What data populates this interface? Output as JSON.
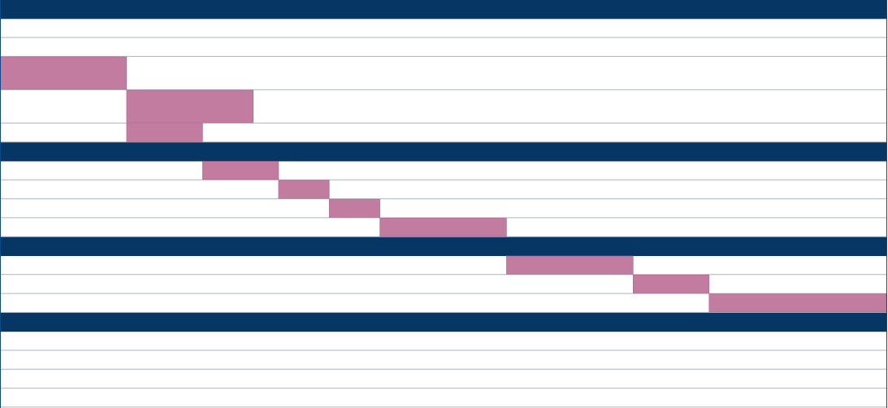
{
  "colors": {
    "header_band": "#063764",
    "task_bar": "#c27ca0",
    "row_line": "#a9b4be",
    "frame": "#0a4a8a",
    "background": "#ffffff"
  },
  "chart_data": {
    "type": "bar",
    "subtype": "gantt",
    "title": "",
    "xlabel": "",
    "ylabel": "",
    "xlim": [
      0,
      35
    ],
    "grid": true,
    "legend": "none",
    "rows": [
      {
        "kind": "header"
      },
      {
        "kind": "empty"
      },
      {
        "kind": "empty"
      },
      {
        "kind": "task",
        "start": 0,
        "end": 5
      },
      {
        "kind": "task",
        "start": 5,
        "end": 10
      },
      {
        "kind": "task",
        "start": 5,
        "end": 8
      },
      {
        "kind": "header"
      },
      {
        "kind": "task",
        "start": 8,
        "end": 11
      },
      {
        "kind": "task",
        "start": 11,
        "end": 13
      },
      {
        "kind": "task",
        "start": 13,
        "end": 15
      },
      {
        "kind": "task",
        "start": 15,
        "end": 20
      },
      {
        "kind": "header"
      },
      {
        "kind": "task",
        "start": 20,
        "end": 25
      },
      {
        "kind": "task",
        "start": 25,
        "end": 28
      },
      {
        "kind": "task",
        "start": 28,
        "end": 35
      },
      {
        "kind": "header"
      },
      {
        "kind": "empty"
      },
      {
        "kind": "empty"
      },
      {
        "kind": "empty"
      },
      {
        "kind": "empty"
      }
    ]
  }
}
